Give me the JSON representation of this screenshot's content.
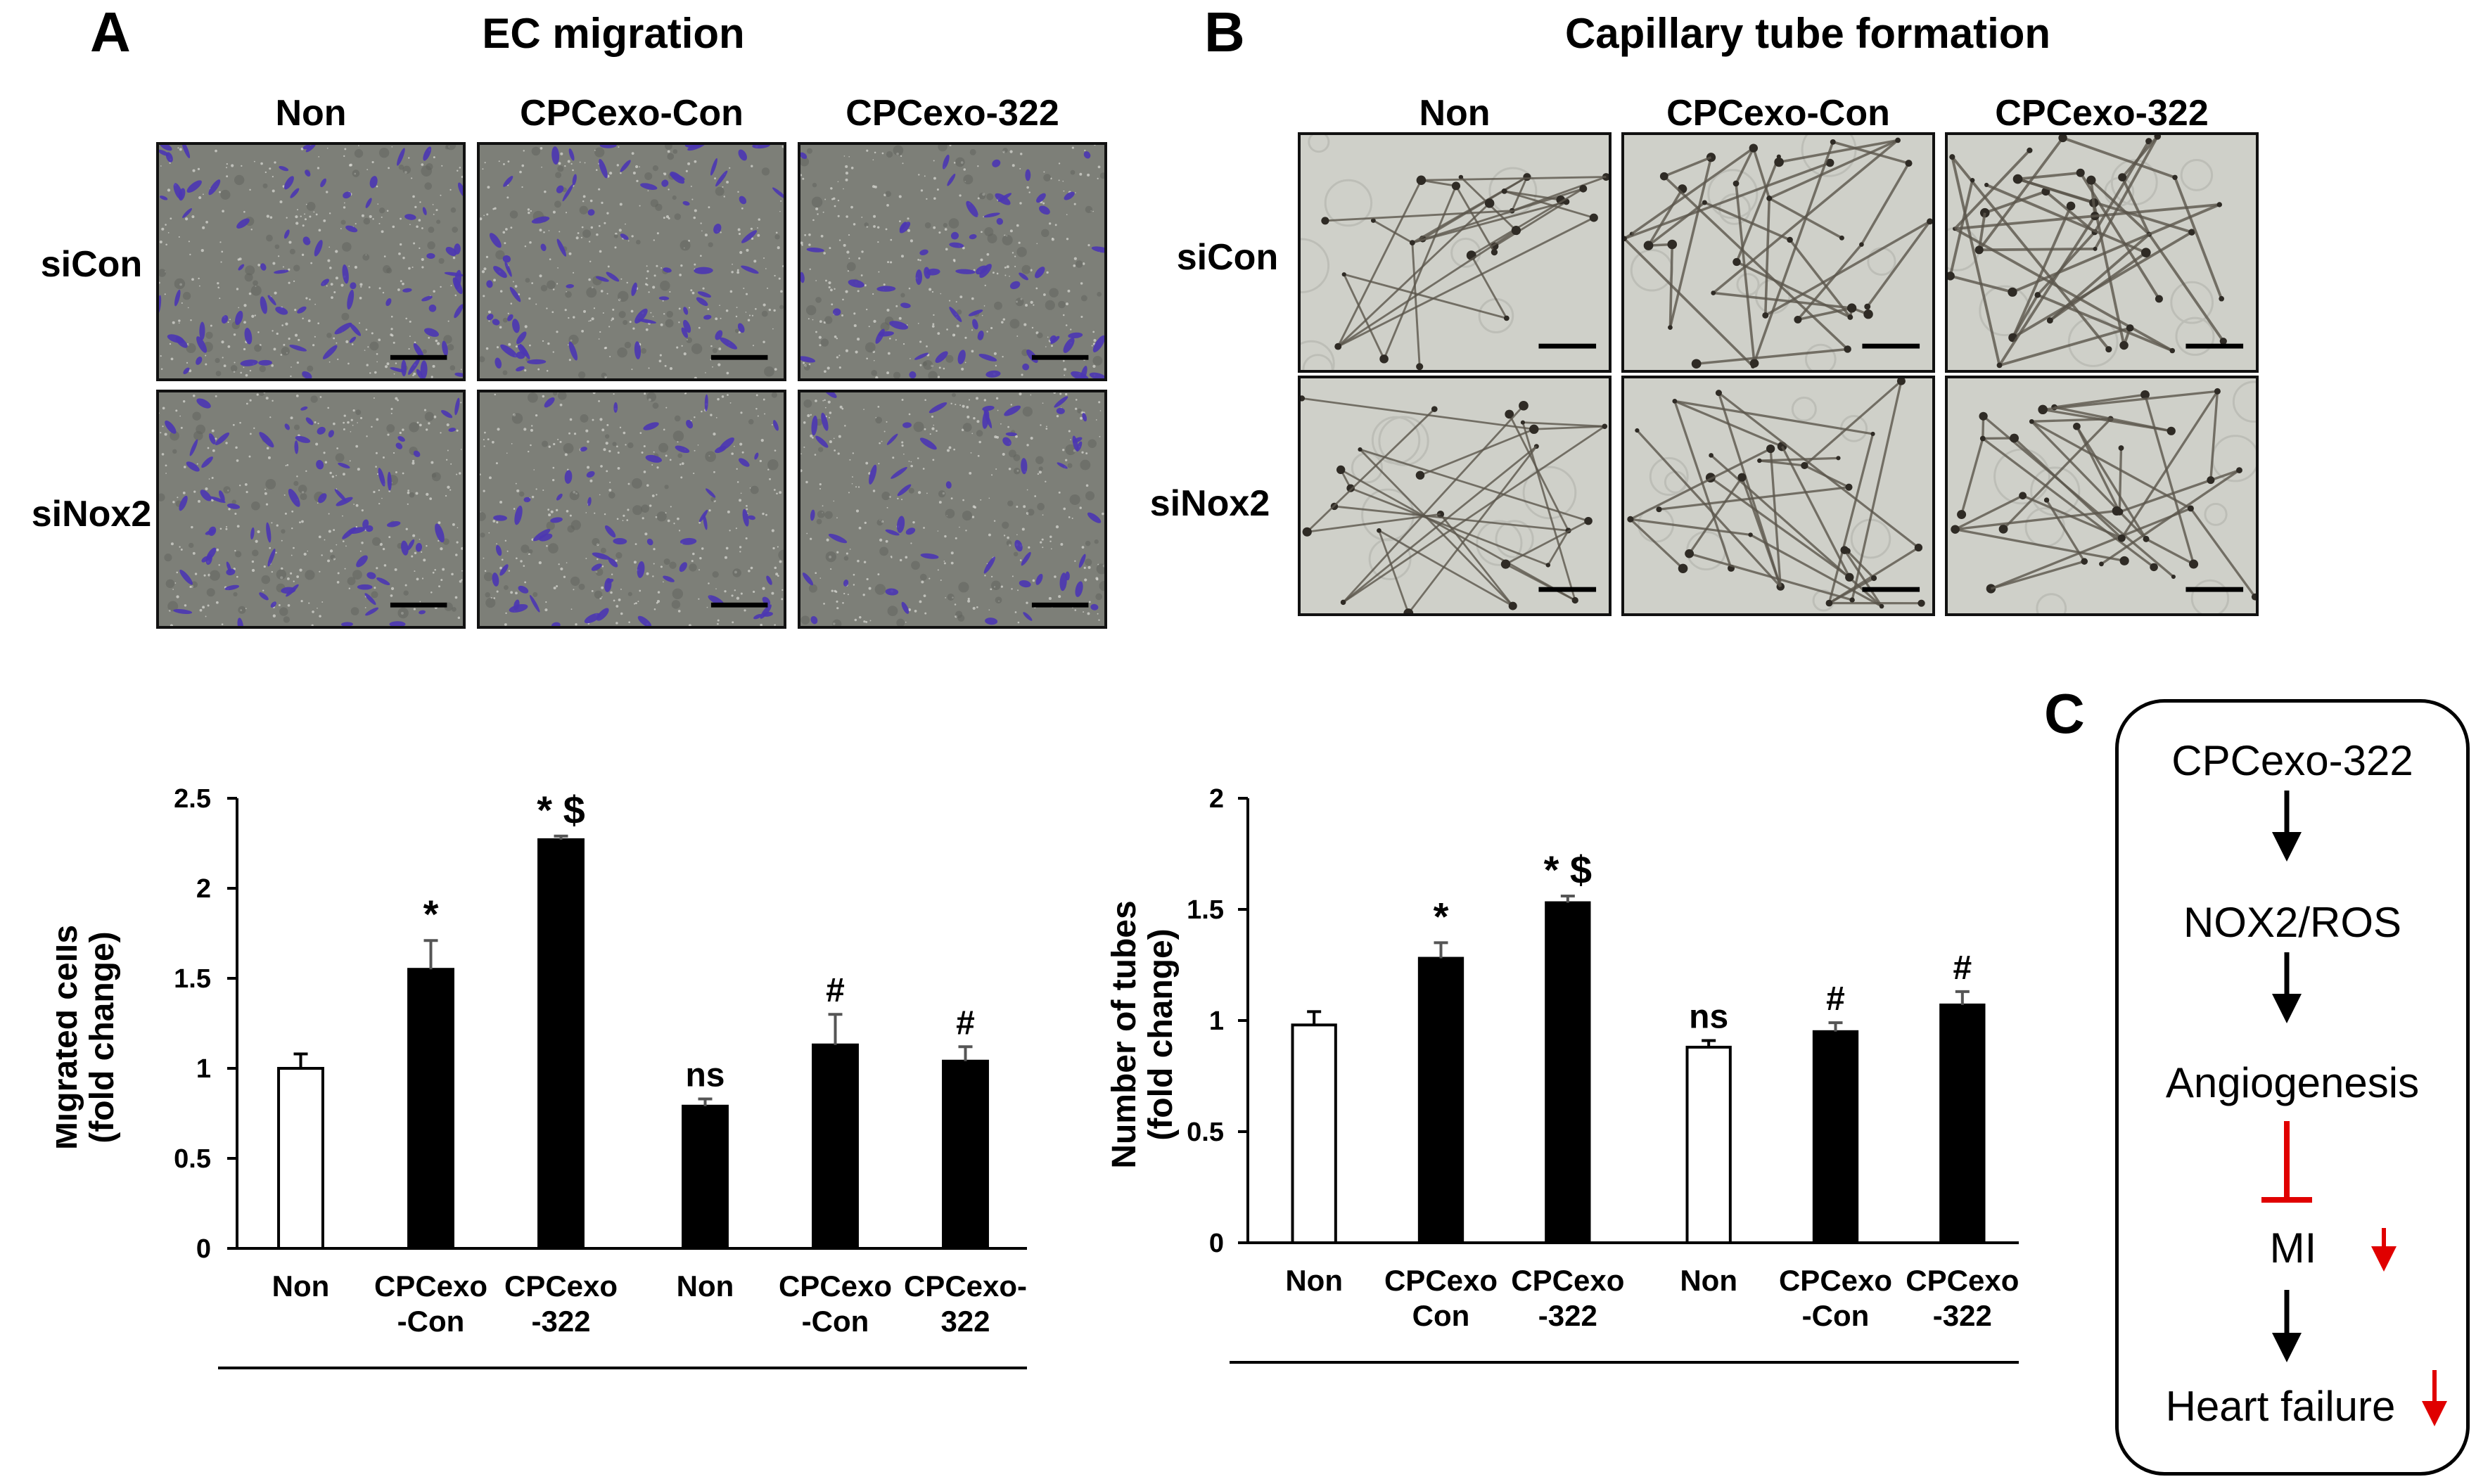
{
  "panel_a": {
    "letter": "A",
    "title": "EC migration",
    "columns": [
      "Non",
      "CPCexo-Con",
      "CPCexo-322"
    ],
    "rows": [
      "siCon",
      "siNox2"
    ]
  },
  "panel_b": {
    "letter": "B",
    "title": "Capillary tube formation",
    "columns": [
      "Non",
      "CPCexo-Con",
      "CPCexo-322"
    ],
    "rows": [
      "siCon",
      "siNox2"
    ]
  },
  "panel_c": {
    "letter": "C",
    "steps": [
      "CPCexo-322",
      "NOX2/ROS",
      "Angiogenesis",
      "MI",
      "Heart failure"
    ],
    "arrow_color": "#000000",
    "inhibit_color": "#e00000"
  },
  "chart_data": [
    {
      "type": "bar",
      "ylabel_lines": [
        "Migrated cells",
        "(fold change)"
      ],
      "ylim": [
        0,
        2.5
      ],
      "yticks": [
        "0",
        "0.5",
        "1",
        "1.5",
        "2",
        "2.5"
      ],
      "categories": [
        [
          "Non"
        ],
        [
          "CPCexo",
          "-Con"
        ],
        [
          "CPCexo",
          "-322"
        ],
        [
          "Non"
        ],
        [
          "CPCexo",
          "-Con"
        ],
        [
          "CPCexo-",
          "322"
        ]
      ],
      "values": [
        1.0,
        1.55,
        2.27,
        0.79,
        1.13,
        1.04
      ],
      "errors": [
        0.08,
        0.16,
        0.02,
        0.04,
        0.17,
        0.08
      ],
      "fills": [
        "#ffffff",
        "#000000",
        "#000000",
        "#000000",
        "#000000",
        "#000000"
      ],
      "annotations": [
        "",
        "*",
        "*$",
        "ns",
        "#",
        "#"
      ],
      "groups": [
        {
          "label": "siCon",
          "bars": [
            0,
            1,
            2
          ]
        },
        {
          "label": "siNox2",
          "bars": [
            3,
            4,
            5
          ]
        }
      ]
    },
    {
      "type": "bar",
      "ylabel_lines": [
        "Number of tubes",
        "(fold change)"
      ],
      "ylim": [
        0,
        2
      ],
      "yticks": [
        "0",
        "0.5",
        "1",
        "1.5",
        "2"
      ],
      "categories": [
        [
          "Non"
        ],
        [
          "CPCexo",
          "Con"
        ],
        [
          "CPCexo",
          "-322"
        ],
        [
          "Non"
        ],
        [
          "CPCexo",
          "-Con"
        ],
        [
          "CPCexo",
          "-322"
        ]
      ],
      "values": [
        0.98,
        1.28,
        1.53,
        0.88,
        0.95,
        1.07
      ],
      "errors": [
        0.06,
        0.07,
        0.03,
        0.03,
        0.04,
        0.06
      ],
      "fills": [
        "#ffffff",
        "#000000",
        "#000000",
        "#ffffff",
        "#000000",
        "#000000"
      ],
      "annotations": [
        "",
        "*",
        "*$",
        "ns",
        "#",
        "#"
      ],
      "groups": [
        {
          "label": "siCon",
          "bars": [
            0,
            1,
            2
          ]
        },
        {
          "label": "siNox2",
          "bars": [
            3,
            4,
            5
          ]
        }
      ]
    }
  ]
}
